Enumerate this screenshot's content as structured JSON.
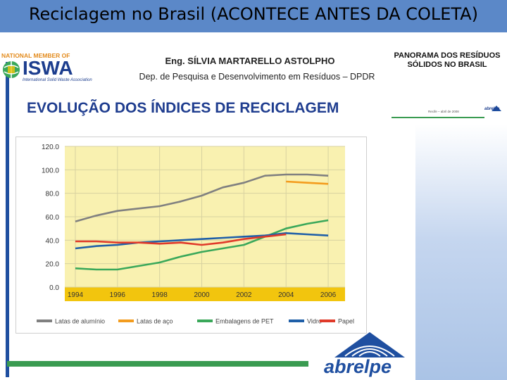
{
  "slide": {
    "title": "Reciclagem no Brasil (ACONTECE ANTES DA COLETA)"
  },
  "header": {
    "isw_top": "NATIONAL MEMBER OF",
    "isw_name": "ISWA",
    "isw_sub": "International Solid Waste Association",
    "author": "Eng. SÍLVIA MARTARELLO ASTOLPHO",
    "department": "Dep. de Pesquisa e Desenvolvimento em Resíduos – DPDR",
    "panorama": "PANORAMA DOS RESÍDUOS SÓLIDOS NO BRASIL",
    "small_date": "Recife – abril de 2008",
    "small_logo": "abrelpe"
  },
  "section_title": "EVOLUÇÃO DOS ÍNDICES DE RECICLAGEM",
  "footer": {
    "logo_text": "abrelpe"
  },
  "colors": {
    "title_bar": "#5b88c8",
    "plot_bg": "#f9f1b0",
    "axis_band": "#f2c50e",
    "aluminium": "#808080",
    "steel": "#f39c1e",
    "pet": "#3aa85a",
    "glass": "#1f5fa8",
    "paper": "#e03a2a"
  },
  "chart_data": {
    "type": "line",
    "x": [
      1994,
      1995,
      1996,
      1997,
      1998,
      1999,
      2000,
      2001,
      2002,
      2003,
      2004,
      2005,
      2006
    ],
    "x_ticks": [
      "1994",
      "1996",
      "1998",
      "2000",
      "2002",
      "2004",
      "2006"
    ],
    "y_ticks": [
      "0.0",
      "20.0",
      "40.0",
      "60.0",
      "80.0",
      "100.0",
      "120.0"
    ],
    "ylim": [
      0,
      120
    ],
    "xlim": [
      1993.5,
      2006.8
    ],
    "legend_position": "bottom",
    "series": [
      {
        "name": "Latas de alumínio",
        "color": "#808080",
        "x": [
          1994,
          1995,
          1996,
          1997,
          1998,
          1999,
          2000,
          2001,
          2002,
          2003,
          2004,
          2005,
          2006
        ],
        "values": [
          56,
          61,
          65,
          67,
          69,
          73,
          78,
          85,
          89,
          95,
          96,
          96,
          95
        ]
      },
      {
        "name": "Latas de aço",
        "color": "#f39c1e",
        "x": [
          2004,
          2005,
          2006
        ],
        "values": [
          90,
          89,
          88
        ]
      },
      {
        "name": "Embalagens de PET",
        "color": "#3aa85a",
        "x": [
          1994,
          1995,
          1996,
          1997,
          1998,
          1999,
          2000,
          2001,
          2002,
          2003,
          2004,
          2005,
          2006
        ],
        "values": [
          16,
          15,
          15,
          18,
          21,
          26,
          30,
          33,
          36,
          43,
          50,
          54,
          57
        ]
      },
      {
        "name": "Vidro",
        "color": "#1f5fa8",
        "x": [
          1994,
          1995,
          1996,
          1997,
          1998,
          1999,
          2000,
          2001,
          2002,
          2003,
          2004,
          2005,
          2006
        ],
        "values": [
          33,
          35,
          36,
          38,
          39,
          40,
          41,
          42,
          43,
          44,
          46,
          45,
          44
        ]
      },
      {
        "name": "Papel",
        "color": "#e03a2a",
        "x": [
          1994,
          1995,
          1996,
          1997,
          1998,
          1999,
          2000,
          2001,
          2002,
          2003,
          2004
        ],
        "values": [
          39,
          39,
          38,
          38,
          37,
          38,
          36,
          38,
          41,
          43,
          45
        ]
      }
    ],
    "legend_labels": [
      "Latas de alumínio",
      "Latas de aço",
      "Embalagens de PET",
      "Vidro",
      "Papel"
    ]
  }
}
